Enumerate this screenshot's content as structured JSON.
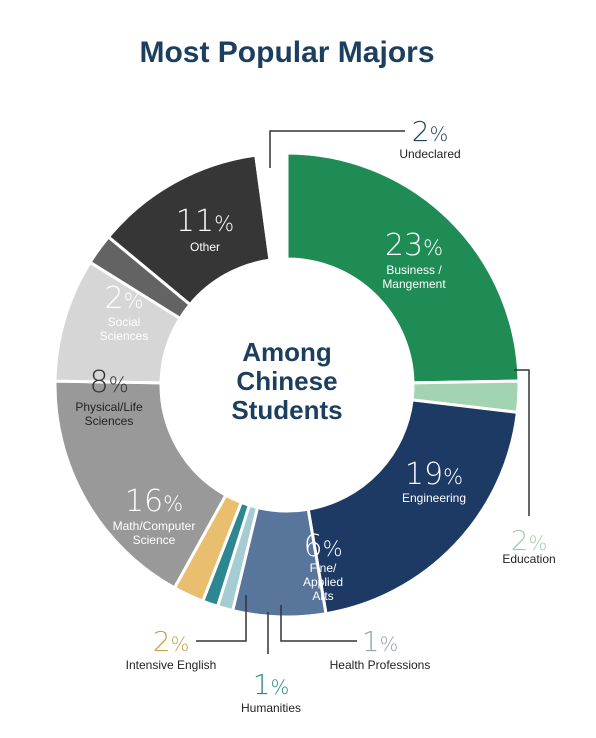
{
  "chart_data": {
    "type": "pie",
    "title": "Most Popular Majors",
    "center_label": [
      "Among",
      "Chinese",
      "Students"
    ],
    "slices": [
      {
        "name": "Business / Mangement",
        "value": 23,
        "color": "#1e8c54"
      },
      {
        "name": "Education",
        "value": 2,
        "color": "#a2d4b2"
      },
      {
        "name": "Engineering",
        "value": 19,
        "color": "#1c3a64"
      },
      {
        "name": "Fine/ Applied Arts",
        "value": 6,
        "color": "#58759b"
      },
      {
        "name": "Health Professions",
        "value": 1,
        "color": "#a5cbd3"
      },
      {
        "name": "Humanities",
        "value": 1,
        "color": "#2c8791"
      },
      {
        "name": "Intensive English",
        "value": 2,
        "color": "#e9be6f"
      },
      {
        "name": "Math/Computer Science",
        "value": 16,
        "color": "#999999"
      },
      {
        "name": "Physical/Life Sciences",
        "value": 8,
        "color": "#d6d6d6"
      },
      {
        "name": "Social Sciences",
        "value": 2,
        "color": "#636363"
      },
      {
        "name": "Other",
        "value": 11,
        "color": "#363636"
      },
      {
        "name": "Undeclared",
        "value": 2,
        "color": "#ffffff"
      }
    ]
  }
}
